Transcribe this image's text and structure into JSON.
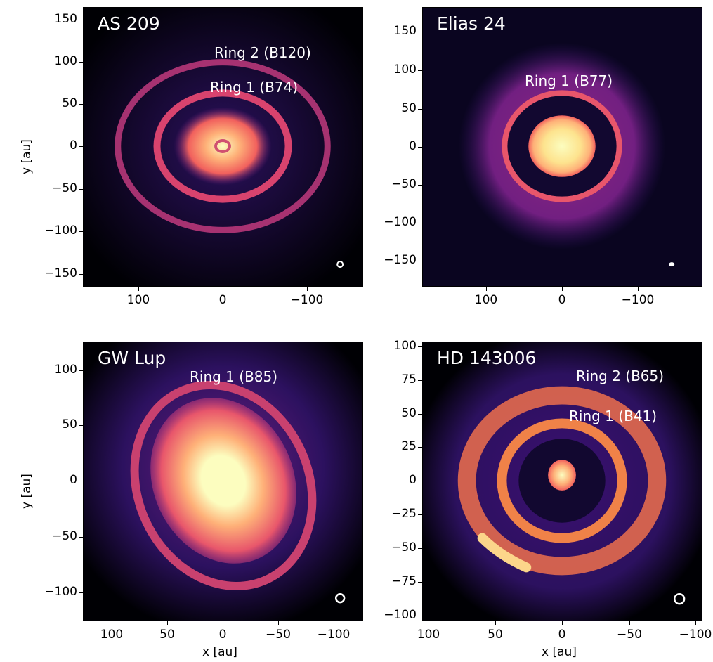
{
  "panels": [
    {
      "title": "AS 209",
      "rings": [
        "Ring 2 (B120)",
        "Ring 1 (B74)"
      ],
      "yticks": [
        "150",
        "100",
        "50",
        "0",
        "−50",
        "−100",
        "−150"
      ],
      "xticks": [
        "100",
        "0",
        "−100"
      ],
      "ylabel": "y [au]",
      "xlabel": ""
    },
    {
      "title": "Elias 24",
      "rings": [
        "Ring 1 (B77)"
      ],
      "yticks": [
        "150",
        "100",
        "50",
        "0",
        "−50",
        "−100",
        "−150"
      ],
      "xticks": [
        "100",
        "0",
        "−100"
      ],
      "ylabel": "",
      "xlabel": ""
    },
    {
      "title": "GW Lup",
      "rings": [
        "Ring 1 (B85)"
      ],
      "yticks": [
        "100",
        "50",
        "0",
        "−50",
        "−100"
      ],
      "xticks": [
        "100",
        "50",
        "0",
        "−50",
        "−100"
      ],
      "ylabel": "y [au]",
      "xlabel": "x [au]"
    },
    {
      "title": "HD 143006",
      "rings": [
        "Ring 2 (B65)",
        "Ring 1 (B41)"
      ],
      "yticks": [
        "100",
        "75",
        "50",
        "25",
        "0",
        "−25",
        "−50",
        "−75",
        "−100"
      ],
      "xticks": [
        "100",
        "50",
        "0",
        "−50",
        "−100"
      ],
      "ylabel": "",
      "xlabel": "x [au]"
    }
  ],
  "colormap": [
    "#000004",
    "#2c115f",
    "#721f81",
    "#b73779",
    "#f1605d",
    "#feb078",
    "#fcfdbf"
  ]
}
